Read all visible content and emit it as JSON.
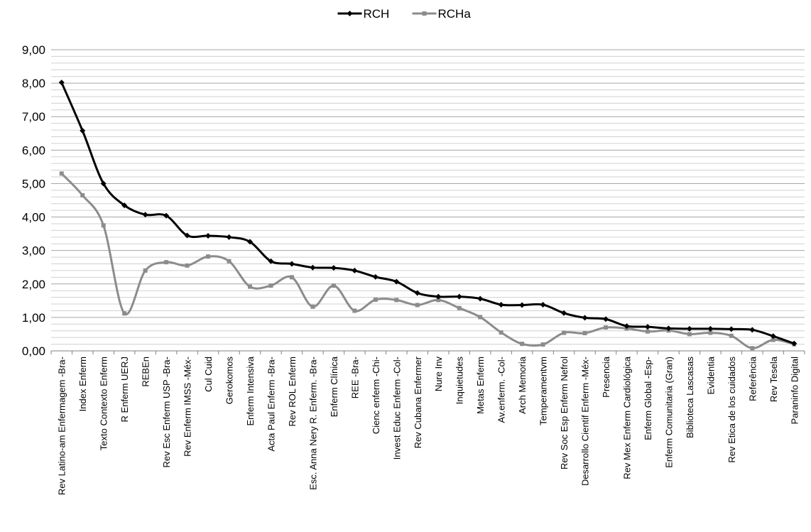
{
  "chart_data": {
    "type": "line",
    "title": "",
    "xlabel": "",
    "ylabel": "",
    "ylim": [
      0,
      9
    ],
    "y_ticks": [
      "0,00",
      "1,00",
      "2,00",
      "3,00",
      "4,00",
      "5,00",
      "6,00",
      "7,00",
      "8,00",
      "9,00"
    ],
    "grid": true,
    "legend_position": "top-center",
    "categories": [
      "Rev Latino-am Enfermagem -Bra-",
      "Index Enferm",
      "Texto Contexto Enferm",
      "R Enferm UERJ",
      "REBEn",
      "Rev Esc Enferm USP -Bra-",
      "Rev Enferm IMSS -Méx-",
      "Cul Cuid",
      "Gerokomos",
      "Enferm Intensiva",
      "Acta Paul Enferm -Bra-",
      "Rev ROL Enferm",
      "Esc. Anna Nery R. Enferm. -Bra-",
      "Enferm Clínica",
      "REE -Bra-",
      "Cienc enferm -Chi-",
      "Invest Educ Enferm -Col-",
      "Rev Cubana Enfermer",
      "Nure Inv",
      "Inquietudes",
      "Metas Enferm",
      "Av.enferm. -Col-",
      "Arch Memoria",
      "Temperamentvm",
      "Rev Soc Esp Enferm Nefrol",
      "Desarrollo Cientif Enferm -Méx-",
      "Presencia",
      "Rev Mex Enferm Cardiológica",
      "Enferm Global -Esp-",
      "Enferm Comunitaria (Gran)",
      "Biblioteca Lascasas",
      "Evidentia",
      "Rev Etica de los cuidados",
      "Referência",
      "Rev Tesela",
      "Paraninfo Digital"
    ],
    "series": [
      {
        "name": "RCH",
        "color": "#000000",
        "values": [
          8.02,
          6.58,
          5.0,
          4.35,
          4.07,
          4.04,
          3.45,
          3.44,
          3.4,
          3.26,
          2.68,
          2.6,
          2.49,
          2.48,
          2.4,
          2.21,
          2.07,
          1.73,
          1.62,
          1.62,
          1.56,
          1.38,
          1.37,
          1.38,
          1.13,
          0.99,
          0.95,
          0.74,
          0.72,
          0.67,
          0.66,
          0.66,
          0.65,
          0.63,
          0.44,
          0.22
        ]
      },
      {
        "name": "RCHa",
        "color": "#8c8c8c",
        "values": [
          5.3,
          4.65,
          3.75,
          1.12,
          2.4,
          2.65,
          2.55,
          2.82,
          2.68,
          1.92,
          1.95,
          2.2,
          1.32,
          1.95,
          1.2,
          1.53,
          1.52,
          1.37,
          1.52,
          1.28,
          1.01,
          0.55,
          0.21,
          0.19,
          0.54,
          0.53,
          0.7,
          0.67,
          0.58,
          0.61,
          0.5,
          0.54,
          0.45,
          0.08,
          0.33,
          0.2
        ]
      }
    ]
  }
}
